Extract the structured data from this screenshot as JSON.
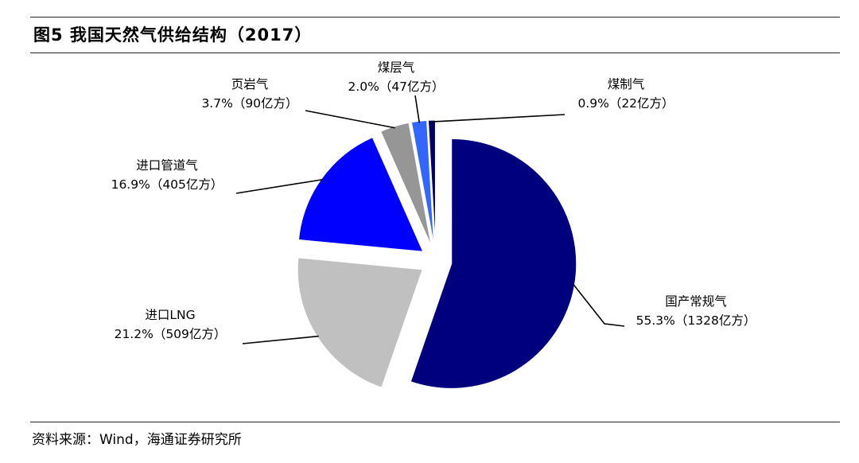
{
  "figure_title": "图5  我国天然气供给结构（2017）",
  "source_note": "资料来源：Wind，海通证券研究所",
  "chart_data": {
    "type": "pie",
    "title": "我国天然气供给结构（2017）",
    "unit": "亿方",
    "slices": [
      {
        "name": "国产常规气",
        "value": 1328,
        "percent": 55.3,
        "value_label": "55.3%（1328亿方）",
        "color": "#00007f"
      },
      {
        "name": "进口LNG",
        "value": 509,
        "percent": 21.2,
        "value_label": "21.2%（509亿方）",
        "color": "#c0c0c0"
      },
      {
        "name": "进口管道气",
        "value": 405,
        "percent": 16.9,
        "value_label": "16.9%（405亿方）",
        "color": "#0000ff"
      },
      {
        "name": "页岩气",
        "value": 90,
        "percent": 3.7,
        "value_label": "3.7%（90亿方）",
        "color": "#969696"
      },
      {
        "name": "煤层气",
        "value": 47,
        "percent": 2.0,
        "value_label": "2.0%（47亿方）",
        "color": "#3366ff"
      },
      {
        "name": "煤制气",
        "value": 22,
        "percent": 0.9,
        "value_label": "0.9%（22亿方）",
        "color": "#000066"
      }
    ]
  }
}
